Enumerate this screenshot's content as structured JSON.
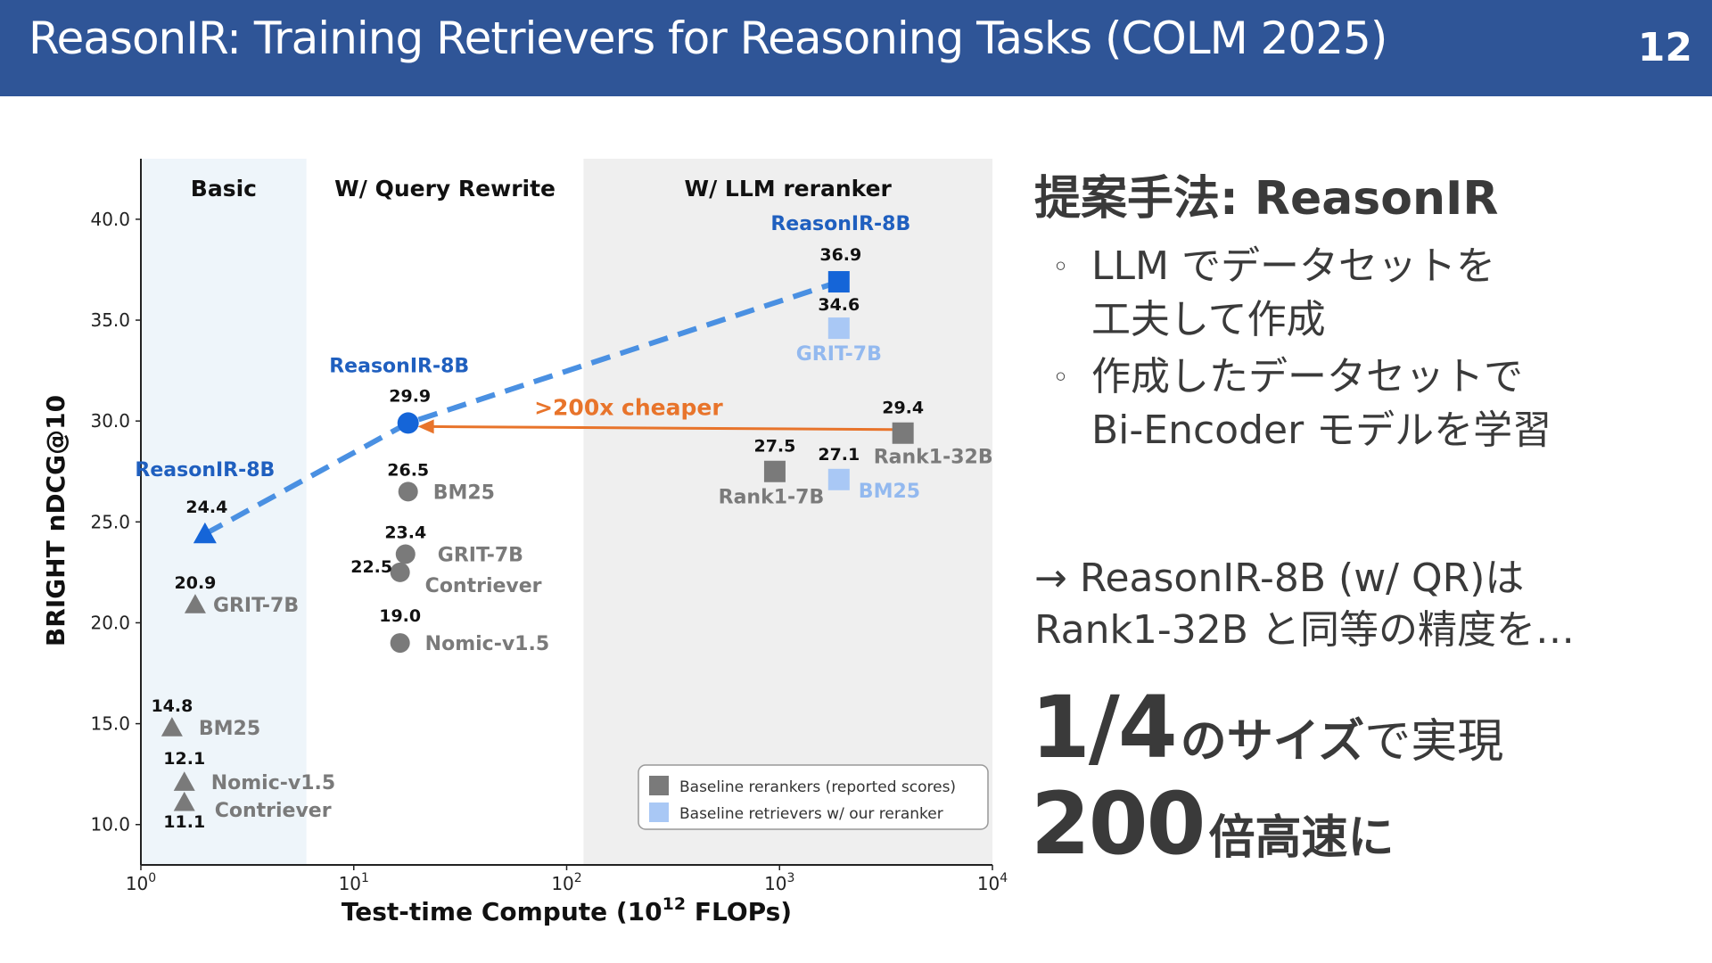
{
  "header": {
    "title": "ReasonIR: Training Retrievers for Reasoning Tasks (COLM 2025)",
    "page_number": "12"
  },
  "chart_data": {
    "type": "scatter",
    "title": "",
    "xlabel": "Test-time Compute (10",
    "xlabel_sup": "12",
    "xlabel_tail": " FLOPs)",
    "ylabel": "BRIGHT nDCG@10",
    "x_scale": "log",
    "xlim": [
      1,
      10000
    ],
    "ylim": [
      8,
      43
    ],
    "yticks": [
      10.0,
      15.0,
      20.0,
      25.0,
      30.0,
      35.0,
      40.0
    ],
    "ytick_labels": [
      "10.0",
      "15.0",
      "20.0",
      "25.0",
      "30.0",
      "35.0",
      "40.0"
    ],
    "xticks": [
      {
        "base": "10",
        "exp": "0",
        "value": 1
      },
      {
        "base": "10",
        "exp": "1",
        "value": 10
      },
      {
        "base": "10",
        "exp": "2",
        "value": 100
      },
      {
        "base": "10",
        "exp": "3",
        "value": 1000
      },
      {
        "base": "10",
        "exp": "4",
        "value": 10000
      }
    ],
    "regions": [
      {
        "label": "Basic",
        "x_from": 1,
        "x_to": 6,
        "color": "#eef5fa"
      },
      {
        "label": "W/ Query Rewrite",
        "x_from": 6,
        "x_to": 120,
        "color": "#ffffff"
      },
      {
        "label": "W/ LLM reranker",
        "x_from": 120,
        "x_to": 10000,
        "color": "#efefef"
      }
    ],
    "points": [
      {
        "group": "Basic",
        "model": "ReasonIR-8B",
        "value_label": "24.4",
        "x": 2.0,
        "y": 24.4,
        "marker": "triangle",
        "color": "#1565d8"
      },
      {
        "group": "Basic",
        "model": "GRIT-7B",
        "value_label": "20.9",
        "x": 1.8,
        "y": 20.9,
        "marker": "triangle",
        "color": "#7a7a7a"
      },
      {
        "group": "Basic",
        "model": "BM25",
        "value_label": "14.8",
        "x": 1.4,
        "y": 14.8,
        "marker": "triangle",
        "color": "#7a7a7a"
      },
      {
        "group": "Basic",
        "model": "Nomic-v1.5",
        "value_label": "12.1",
        "x": 1.6,
        "y": 12.1,
        "marker": "triangle",
        "color": "#7a7a7a"
      },
      {
        "group": "Basic",
        "model": "Contriever",
        "value_label": "11.1",
        "x": 1.6,
        "y": 11.1,
        "marker": "triangle",
        "color": "#7a7a7a"
      },
      {
        "group": "W/ Query Rewrite",
        "model": "ReasonIR-8B",
        "value_label": "29.9",
        "x": 18,
        "y": 29.9,
        "marker": "circle",
        "color": "#1565d8"
      },
      {
        "group": "W/ Query Rewrite",
        "model": "BM25",
        "value_label": "26.5",
        "x": 18,
        "y": 26.5,
        "marker": "circle",
        "color": "#7a7a7a"
      },
      {
        "group": "W/ Query Rewrite",
        "model": "GRIT-7B",
        "value_label": "23.4",
        "x": 17.5,
        "y": 23.4,
        "marker": "circle",
        "color": "#7a7a7a"
      },
      {
        "group": "W/ Query Rewrite",
        "model": "Contriever",
        "value_label": "22.5",
        "x": 16.5,
        "y": 22.5,
        "marker": "circle",
        "color": "#7a7a7a"
      },
      {
        "group": "W/ Query Rewrite",
        "model": "Nomic-v1.5",
        "value_label": "19.0",
        "x": 16.5,
        "y": 19.0,
        "marker": "circle",
        "color": "#7a7a7a"
      },
      {
        "group": "W/ LLM reranker",
        "model": "ReasonIR-8B",
        "value_label": "36.9",
        "x": 1900,
        "y": 36.9,
        "marker": "square",
        "color": "#1565d8"
      },
      {
        "group": "W/ LLM reranker",
        "model": "GRIT-7B",
        "value_label": "34.6",
        "x": 1900,
        "y": 34.6,
        "marker": "square",
        "color": "#a9c8f5"
      },
      {
        "group": "W/ LLM reranker",
        "model": "Rank1-32B",
        "value_label": "29.4",
        "x": 3800,
        "y": 29.4,
        "marker": "square",
        "color": "#7a7a7a"
      },
      {
        "group": "W/ LLM reranker",
        "model": "Rank1-7B",
        "value_label": "27.5",
        "x": 950,
        "y": 27.5,
        "marker": "square",
        "color": "#7a7a7a"
      },
      {
        "group": "W/ LLM reranker",
        "model": "BM25",
        "value_label": "27.1",
        "x": 1900,
        "y": 27.1,
        "marker": "square",
        "color": "#a9c8f5"
      }
    ],
    "trend_line": {
      "points": [
        [
          2.0,
          24.4
        ],
        [
          18,
          29.9
        ],
        [
          1900,
          36.9
        ]
      ],
      "color": "#4a90e2",
      "style": "dashed"
    },
    "annotation": {
      "text": ">200x cheaper",
      "color": "#e8742b",
      "from": [
        3400,
        29.4
      ],
      "to": [
        20,
        29.9
      ]
    },
    "legend": {
      "placement": "bottom-right",
      "entries": [
        {
          "label": "Baseline rerankers (reported scores)",
          "color": "#7a7a7a"
        },
        {
          "label": "Baseline retrievers w/ our reranker",
          "color": "#a9c8f5"
        }
      ]
    },
    "grid": false
  },
  "right_panel": {
    "section_title": "提案手法: ReasonIR",
    "bullets": [
      {
        "marker": "◦",
        "lines": [
          "LLM でデータセットを",
          "工夫して作成"
        ]
      },
      {
        "marker": "◦",
        "lines": [
          "作成したデータセットで",
          "Bi-Encoder モデルを学習"
        ]
      }
    ],
    "conclusion_lines": [
      "→ ReasonIR-8B (w/ QR)は",
      "Rank1-32B と同等の精度を…"
    ],
    "big_row_1": {
      "number": "1/4",
      "bold_suffix": "のサイズ",
      "normal_suffix": "で実現"
    },
    "big_row_2": {
      "number": "200",
      "bold_suffix": "倍高速に",
      "normal_suffix": ""
    }
  },
  "colors": {
    "header_bg": "#2f5597",
    "accent_blue": "#1565d8",
    "light_blue": "#a9c8f5",
    "gray_marker": "#7a7a7a",
    "orange": "#e8742b"
  }
}
